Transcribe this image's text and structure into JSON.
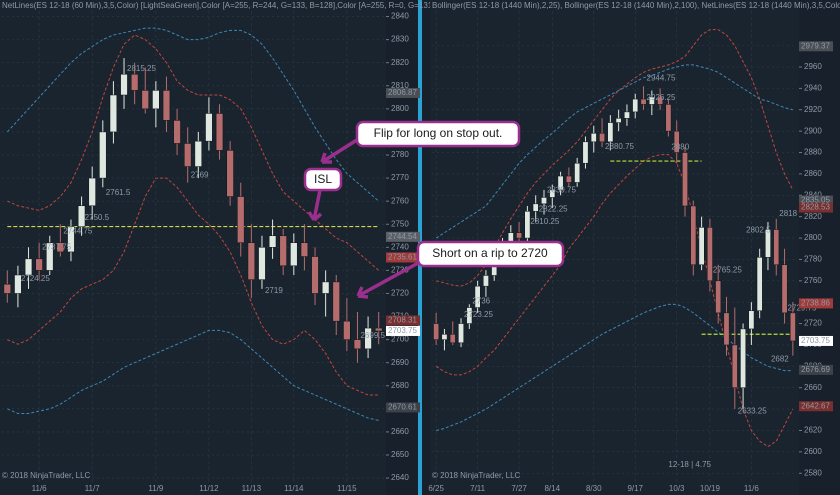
{
  "chart_data": [
    {
      "type": "candlestick",
      "title": "NetLines(ES 12-18 (60 Min),3,5,Color) [LightSeaGreen],Color [A=255, R=244, G=133, B=128],Color [A=255, R=0, G=131",
      "footer": "© 2018 NinjaTrader, LLC",
      "categories": [
        null,
        null,
        null,
        "11/6",
        null,
        null,
        null,
        null,
        "11/7",
        null,
        null,
        null,
        null,
        null,
        "11/9",
        null,
        null,
        null,
        null,
        "11/12",
        null,
        null,
        null,
        "11/13",
        null,
        null,
        null,
        "11/14",
        null,
        null,
        null,
        null,
        "11/15",
        null,
        null,
        null
      ],
      "open": [
        2724,
        2720,
        2728,
        2735,
        2730,
        2742,
        2738,
        2749,
        2758,
        2770,
        2790,
        2806,
        2815,
        2808,
        2800,
        2808,
        2795,
        2785,
        2775,
        2786,
        2798,
        2782,
        2762,
        2742,
        2726,
        2740,
        2745,
        2732,
        2742,
        2736,
        2720,
        2725,
        2708,
        2700,
        2696,
        2705
      ],
      "high": [
        2730,
        2732,
        2740,
        2742,
        2745,
        2750,
        2752,
        2762,
        2775,
        2795,
        2812,
        2822,
        2820,
        2818,
        2812,
        2814,
        2800,
        2792,
        2790,
        2805,
        2802,
        2786,
        2768,
        2750,
        2745,
        2752,
        2748,
        2746,
        2750,
        2740,
        2730,
        2728,
        2718,
        2712,
        2710,
        2712
      ],
      "low": [
        2716,
        2714,
        2722,
        2726,
        2728,
        2736,
        2734,
        2745,
        2752,
        2766,
        2785,
        2800,
        2802,
        2798,
        2792,
        2790,
        2780,
        2768,
        2770,
        2782,
        2778,
        2758,
        2736,
        2718,
        2722,
        2735,
        2728,
        2728,
        2730,
        2715,
        2710,
        2702,
        2695,
        2690,
        2692,
        2698
      ],
      "close": [
        2720,
        2728,
        2735,
        2730,
        2742,
        2738,
        2749,
        2758,
        2770,
        2790,
        2806,
        2815,
        2808,
        2800,
        2808,
        2795,
        2785,
        2775,
        2786,
        2798,
        2782,
        2762,
        2742,
        2726,
        2740,
        2745,
        2732,
        2742,
        2736,
        2720,
        2725,
        2708,
        2700,
        2696,
        2705,
        2703.75
      ],
      "up_color": "#dfe8e0",
      "down_color": "#b46c6c",
      "bands": [
        {
          "color": "#c0453f",
          "values": [
            2760,
            2758,
            2757,
            2756,
            2758,
            2762,
            2768,
            2778,
            2790,
            2805,
            2818,
            2828,
            2832,
            2830,
            2826,
            2820,
            2812,
            2808,
            2806,
            2806,
            2806,
            2804,
            2800,
            2792,
            2782,
            2772,
            2764,
            2760,
            2756,
            2752,
            2748,
            2744,
            2742,
            2738,
            2734,
            2730
          ]
        },
        {
          "color": "#c0453f",
          "values": [
            2700,
            2698,
            2700,
            2704,
            2708,
            2712,
            2718,
            2722,
            2724,
            2726,
            2730,
            2738,
            2750,
            2762,
            2770,
            2770,
            2766,
            2760,
            2754,
            2750,
            2745,
            2738,
            2728,
            2716,
            2706,
            2700,
            2698,
            2700,
            2704,
            2700,
            2694,
            2686,
            2680,
            2678,
            2676,
            2676
          ]
        },
        {
          "color": "#3f86b4",
          "values": [
            2790,
            2795,
            2800,
            2805,
            2810,
            2815,
            2820,
            2824,
            2827,
            2830,
            2832,
            2833,
            2834,
            2835,
            2835,
            2834,
            2832,
            2830,
            2830,
            2831,
            2833,
            2834,
            2834,
            2832,
            2828,
            2822,
            2815,
            2808,
            2800,
            2792,
            2785,
            2778,
            2772,
            2768,
            2764,
            2760
          ]
        },
        {
          "color": "#3f86b4",
          "values": [
            2670,
            2668,
            2668,
            2669,
            2670,
            2672,
            2675,
            2678,
            2680,
            2682,
            2685,
            2688,
            2690,
            2692,
            2694,
            2696,
            2698,
            2700,
            2702,
            2704,
            2704,
            2703,
            2700,
            2696,
            2692,
            2688,
            2684,
            2680,
            2678,
            2676,
            2674,
            2672,
            2670,
            2668,
            2666,
            2665
          ]
        }
      ],
      "levels": [
        {
          "value": 2749,
          "from": 0,
          "to": 35,
          "color": "#d8d84a"
        }
      ],
      "value_notes": [
        {
          "index": 1,
          "value": 2724.25
        },
        {
          "index": 3,
          "value": 2737.75
        },
        {
          "index": 5,
          "value": 2744.75
        },
        {
          "index": 7,
          "value": 2750.5
        },
        {
          "index": 9,
          "value": 2761.5
        },
        {
          "index": 11,
          "value": 2815.25
        },
        {
          "index": 17,
          "value": 2769
        },
        {
          "index": 24,
          "value": 2719
        },
        {
          "index": 33,
          "value": 2699.5
        }
      ],
      "price_markers": [
        {
          "value": 2806.87,
          "color": "#4a4f55"
        },
        {
          "value": 2744.54,
          "color": "#5b6066"
        },
        {
          "value": 2735.61,
          "color": "#a33a3a"
        },
        {
          "value": 2708.31,
          "color": "#7a2e2e"
        },
        {
          "value": 2703.75,
          "color": "#ffffff"
        },
        {
          "value": 2670.61,
          "color": "#3d4248"
        }
      ],
      "annotations": [
        "Flip for long on stop out.",
        "ISL",
        "Short on a rip to 2720"
      ],
      "ylim": [
        2637,
        2845
      ],
      "yticks": [
        2640,
        2650,
        2660,
        2670,
        2680,
        2690,
        2700,
        2710,
        2720,
        2730,
        2740,
        2750,
        2760,
        2770,
        2780,
        2790,
        2800,
        2810,
        2820,
        2830,
        2840
      ],
      "grid": true
    },
    {
      "type": "candlestick",
      "title": "Bollinger(ES 12-18 (1440 Min),2,25), Bollinger(ES 12-18 (1440 Min),2,100), NetLines(ES 12-18 (1440 Min),3,5,Color) [",
      "footer": "© 2018 NinjaTrader, LLC",
      "subtitle": "12-18 | 4.75",
      "categories": [
        "6/25",
        null,
        null,
        null,
        null,
        "7/11",
        null,
        null,
        null,
        null,
        "7/27",
        null,
        null,
        null,
        "8/14",
        null,
        null,
        null,
        null,
        "8/30",
        null,
        null,
        null,
        null,
        "9/17",
        null,
        null,
        null,
        null,
        "10/3",
        null,
        null,
        null,
        "10/19",
        null,
        null,
        null,
        null,
        "11/6",
        null,
        null,
        null,
        null,
        null
      ],
      "open": [
        2720,
        2705,
        2710,
        2702,
        2720,
        2735,
        2755,
        2765,
        2785,
        2795,
        2805,
        2800,
        2825,
        2832,
        2838,
        2845,
        2858,
        2852,
        2870,
        2890,
        2898,
        2890,
        2908,
        2912,
        2918,
        2930,
        2925,
        2932,
        2925,
        2900,
        2880,
        2830,
        2775,
        2810,
        2760,
        2730,
        2700,
        2660,
        2715,
        2732,
        2782,
        2808,
        2775,
        2730
      ],
      "high": [
        2730,
        2715,
        2722,
        2725,
        2738,
        2760,
        2770,
        2790,
        2800,
        2812,
        2815,
        2830,
        2840,
        2845,
        2850,
        2862,
        2866,
        2875,
        2895,
        2905,
        2912,
        2915,
        2920,
        2925,
        2935,
        2942,
        2938,
        2940,
        2930,
        2910,
        2885,
        2835,
        2820,
        2818,
        2775,
        2745,
        2735,
        2720,
        2740,
        2790,
        2815,
        2818,
        2790,
        2740
      ],
      "low": [
        2700,
        2695,
        2700,
        2698,
        2715,
        2730,
        2745,
        2760,
        2775,
        2785,
        2795,
        2795,
        2815,
        2822,
        2828,
        2840,
        2848,
        2848,
        2865,
        2880,
        2885,
        2882,
        2900,
        2905,
        2912,
        2920,
        2915,
        2920,
        2895,
        2870,
        2820,
        2765,
        2770,
        2750,
        2720,
        2690,
        2640,
        2640,
        2700,
        2725,
        2770,
        2765,
        2720,
        2690
      ],
      "close": [
        2705,
        2710,
        2702,
        2720,
        2735,
        2755,
        2765,
        2785,
        2795,
        2805,
        2800,
        2825,
        2832,
        2838,
        2845,
        2858,
        2852,
        2870,
        2890,
        2898,
        2890,
        2908,
        2912,
        2918,
        2930,
        2925,
        2932,
        2925,
        2900,
        2880,
        2830,
        2775,
        2810,
        2760,
        2730,
        2700,
        2660,
        2715,
        2732,
        2782,
        2808,
        2775,
        2730,
        2703.75
      ],
      "up_color": "#dfe8e0",
      "down_color": "#b46c6c",
      "bands": [
        {
          "color": "#c0453f",
          "values": [
            2760,
            2758,
            2756,
            2755,
            2758,
            2765,
            2775,
            2790,
            2805,
            2818,
            2830,
            2842,
            2852,
            2860,
            2868,
            2875,
            2882,
            2890,
            2900,
            2910,
            2920,
            2930,
            2938,
            2944,
            2950,
            2955,
            2958,
            2960,
            2962,
            2965,
            2970,
            2980,
            2990,
            2995,
            2995,
            2990,
            2980,
            2965,
            2950,
            2930,
            2905,
            2880,
            2860,
            2845
          ]
        },
        {
          "color": "#c0453f",
          "values": [
            2680,
            2675,
            2672,
            2672,
            2675,
            2680,
            2688,
            2695,
            2705,
            2715,
            2725,
            2735,
            2745,
            2755,
            2765,
            2775,
            2790,
            2800,
            2810,
            2820,
            2832,
            2842,
            2850,
            2858,
            2865,
            2872,
            2876,
            2878,
            2878,
            2870,
            2850,
            2820,
            2790,
            2760,
            2730,
            2700,
            2670,
            2640,
            2620,
            2610,
            2605,
            2610,
            2625,
            2640
          ]
        },
        {
          "color": "#3f86b4",
          "values": [
            2800,
            2805,
            2810,
            2815,
            2820,
            2825,
            2830,
            2840,
            2850,
            2860,
            2870,
            2878,
            2885,
            2892,
            2898,
            2905,
            2912,
            2918,
            2922,
            2926,
            2930,
            2934,
            2938,
            2942,
            2946,
            2950,
            2952,
            2955,
            2958,
            2960,
            2962,
            2962,
            2960,
            2958,
            2955,
            2950,
            2945,
            2940,
            2935,
            2930,
            2928,
            2925,
            2922,
            2920
          ]
        },
        {
          "color": "#3f86b4",
          "values": [
            2620,
            2622,
            2625,
            2628,
            2632,
            2636,
            2640,
            2645,
            2650,
            2655,
            2660,
            2665,
            2670,
            2675,
            2680,
            2685,
            2690,
            2695,
            2700,
            2705,
            2710,
            2714,
            2718,
            2722,
            2726,
            2730,
            2733,
            2736,
            2738,
            2738,
            2735,
            2730,
            2724,
            2718,
            2712,
            2706,
            2700,
            2694,
            2688,
            2684,
            2680,
            2678,
            2676,
            2676
          ]
        }
      ],
      "levels": [
        {
          "value": 2872,
          "from": 21,
          "to": 32,
          "color": "#b8e03a"
        },
        {
          "value": 2710,
          "from": 32,
          "to": 43,
          "color": "#b8e03a"
        }
      ],
      "value_notes": [
        {
          "index": 3,
          "value": 2723.25
        },
        {
          "index": 4,
          "value": 2736
        },
        {
          "index": 11,
          "value": 2810.25
        },
        {
          "index": 12,
          "value": 2822.25
        },
        {
          "index": 13,
          "value": 2839.75
        },
        {
          "index": 20,
          "value": 2880.75
        },
        {
          "index": 25,
          "value": 2944.75
        },
        {
          "index": 25,
          "value": 2926.25
        },
        {
          "index": 28,
          "value": 2880
        },
        {
          "index": 33,
          "value": 2765.25
        },
        {
          "index": 36,
          "value": 2633.25
        },
        {
          "index": 37,
          "value": 2802.5
        },
        {
          "index": 40,
          "value": 2682
        },
        {
          "index": 41,
          "value": 2818
        },
        {
          "index": 42,
          "value": 2729.75
        }
      ],
      "price_markers": [
        {
          "value": 2979.37,
          "color": "#4a4f55"
        },
        {
          "value": 2835.05,
          "color": "#4a4f55"
        },
        {
          "value": 2828.53,
          "color": "#7a2e2e"
        },
        {
          "value": 2738.86,
          "color": "#a33a3a"
        },
        {
          "value": 2703.75,
          "color": "#ffffff"
        },
        {
          "value": 2676.69,
          "color": "#3d4248"
        },
        {
          "value": 2642.67,
          "color": "#7a2e2e"
        }
      ],
      "ylim": [
        2569,
        3018
      ],
      "yticks": [
        2580,
        2600,
        2620,
        2640,
        2660,
        2680,
        2700,
        2720,
        2740,
        2760,
        2780,
        2800,
        2820,
        2840,
        2860,
        2880,
        2900,
        2920,
        2940,
        2960,
        2980
      ],
      "grid": true
    }
  ]
}
